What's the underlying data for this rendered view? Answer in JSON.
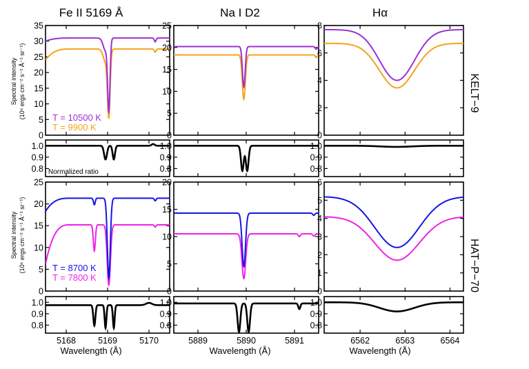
{
  "chart_data": {
    "type": "line",
    "column_titles": [
      "Fe II 5169 Å",
      "Na I D2",
      "Hα"
    ],
    "row_labels": [
      "KELT−9",
      "HAT−P−70"
    ],
    "xlabel": "Wavelength (Å)",
    "ylabel_line1": "Spectral intensity",
    "ylabel_line2": "(10⁶ ergs cm⁻² s⁻¹ Å⁻¹ sr⁻¹)",
    "ratio_label": "Normalized ratio",
    "columns": [
      {
        "xlim": [
          5167.5,
          5170.5
        ],
        "xticks": [
          5168,
          5169,
          5170
        ]
      },
      {
        "xlim": [
          5888.5,
          5891.5
        ],
        "xticks": [
          5889,
          5890,
          5891
        ]
      },
      {
        "xlim": [
          6561.2,
          6564.3
        ],
        "xticks": [
          6562,
          6563,
          6564
        ]
      }
    ],
    "rows": [
      {
        "panels": [
          {
            "ylim": [
              0,
              35
            ],
            "yticks": [
              0,
              5,
              10,
              15,
              20,
              25,
              30,
              35
            ]
          },
          {
            "ylim": [
              0,
              25
            ],
            "yticks": [
              0,
              5,
              10,
              15,
              20,
              25
            ]
          },
          {
            "ylim": [
              0,
              8
            ],
            "yticks": [
              0,
              2,
              4,
              6,
              8
            ]
          }
        ],
        "ratio_ylim": [
          0.73,
          1.05
        ],
        "ratio_yticks": [
          0.8,
          0.9,
          1.0
        ],
        "series": [
          {
            "label": "T = 10500 K",
            "color": "#9b2fd6"
          },
          {
            "label": "T = 9900 K",
            "color": "#f5a21b"
          }
        ]
      },
      {
        "panels": [
          {
            "ylim": [
              0,
              25
            ],
            "yticks": [
              0,
              5,
              10,
              15,
              20,
              25
            ]
          },
          {
            "ylim": [
              0,
              20
            ],
            "yticks": [
              0,
              5,
              10,
              15,
              20
            ]
          },
          {
            "ylim": [
              0,
              6
            ],
            "yticks": [
              0,
              1,
              2,
              3,
              4,
              5,
              6
            ]
          }
        ],
        "ratio_ylim": [
          0.73,
          1.05
        ],
        "ratio_yticks": [
          0.8,
          0.9,
          1.0
        ],
        "series": [
          {
            "label": "T = 8700 K",
            "color": "#1414e6"
          },
          {
            "label": "T = 7800 K",
            "color": "#ee22e6"
          }
        ]
      }
    ],
    "spectra": [
      [
        {
          "col": 0,
          "curves": [
            {
              "series": 0,
              "cont": 31.0,
              "edge": [
                0,
                0.2,
                1.0
              ],
              "lines": [
                {
                  "c": 5169.03,
                  "d": 22.0,
                  "w": 0.04
                },
                {
                  "c": 5168.95,
                  "d": 4,
                  "w": 0.08
                },
                {
                  "c": 5170.15,
                  "d": 1.2,
                  "w": 0.03
                }
              ]
            },
            {
              "series": 1,
              "cont": 27.5,
              "edge": [
                0,
                0.2,
                3.5
              ],
              "lines": [
                {
                  "c": 5169.03,
                  "d": 20.5,
                  "w": 0.045
                },
                {
                  "c": 5168.95,
                  "d": 4,
                  "w": 0.08
                },
                {
                  "c": 5170.15,
                  "d": 1.0,
                  "w": 0.03
                }
              ]
            }
          ],
          "ratio": {
            "base": 1.0,
            "lines": [
              {
                "c": 5168.95,
                "d": 0.12,
                "w": 0.05
              },
              {
                "c": 5169.15,
                "d": 0.12,
                "w": 0.04
              }
            ],
            "bumps": [
              {
                "c": 5170.1,
                "a": 0.015,
                "w": 0.05
              }
            ]
          }
        },
        {
          "col": 1,
          "curves": [
            {
              "series": 0,
              "cont": 20.2,
              "edge": [
                0,
                0,
                0
              ],
              "lines": [
                {
                  "c": 5889.95,
                  "d": 9.2,
                  "w": 0.04
                },
                {
                  "c": 5891.45,
                  "d": 0.6,
                  "w": 0.03
                }
              ]
            },
            {
              "series": 1,
              "cont": 18.3,
              "edge": [
                0,
                0,
                0
              ],
              "lines": [
                {
                  "c": 5889.95,
                  "d": 10.1,
                  "w": 0.045
                },
                {
                  "c": 5891.45,
                  "d": 0.6,
                  "w": 0.03
                }
              ]
            }
          ],
          "ratio": {
            "base": 1.0,
            "lines": [
              {
                "c": 5889.92,
                "d": 0.22,
                "w": 0.04
              },
              {
                "c": 5890.02,
                "d": 0.22,
                "w": 0.04
              }
            ],
            "bumps": []
          }
        },
        {
          "col": 2,
          "curves": [
            {
              "series": 0,
              "cont": 7.7,
              "edge": [
                0,
                0,
                0
              ],
              "lines": [
                {
                  "c": 6562.82,
                  "d": 3.7,
                  "w": 0.55
                }
              ]
            },
            {
              "series": 1,
              "cont": 6.7,
              "edge": [
                0,
                0,
                0
              ],
              "lines": [
                {
                  "c": 6562.82,
                  "d": 3.25,
                  "w": 0.55
                }
              ]
            }
          ],
          "ratio": {
            "base": 1.0,
            "lines": [
              {
                "c": 6562.8,
                "d": 0.01,
                "w": 0.5
              }
            ],
            "bumps": []
          }
        }
      ],
      [
        {
          "col": 0,
          "curves": [
            {
              "series": 0,
              "cont": 21.3,
              "edge": [
                0,
                0.2,
                3.0
              ],
              "lines": [
                {
                  "c": 5169.03,
                  "d": 18.3,
                  "w": 0.05
                },
                {
                  "c": 5168.68,
                  "d": 1.5,
                  "w": 0.03
                },
                {
                  "c": 5170.15,
                  "d": 0.6,
                  "w": 0.03
                }
              ]
            },
            {
              "series": 1,
              "cont": 15.2,
              "edge": [
                0,
                0.2,
                9.0
              ],
              "lines": [
                {
                  "c": 5169.03,
                  "d": 13.8,
                  "w": 0.055
                },
                {
                  "c": 5168.68,
                  "d": 6.0,
                  "w": 0.035
                },
                {
                  "c": 5170.15,
                  "d": 0.5,
                  "w": 0.03
                }
              ]
            }
          ],
          "ratio": {
            "base": 0.975,
            "lines": [
              {
                "c": 5168.68,
                "d": 0.18,
                "w": 0.035
              },
              {
                "c": 5168.95,
                "d": 0.2,
                "w": 0.03
              },
              {
                "c": 5169.15,
                "d": 0.2,
                "w": 0.03
              }
            ],
            "bumps": [
              {
                "c": 5170.0,
                "a": 0.02,
                "w": 0.1
              }
            ]
          }
        },
        {
          "col": 1,
          "curves": [
            {
              "series": 0,
              "cont": 14.3,
              "edge": [
                0,
                0,
                0
              ],
              "lines": [
                {
                  "c": 5889.95,
                  "d": 9.8,
                  "w": 0.05
                },
                {
                  "c": 5891.4,
                  "d": 0.4,
                  "w": 0.03
                }
              ]
            },
            {
              "series": 1,
              "cont": 10.5,
              "edge": [
                0,
                0,
                0
              ],
              "lines": [
                {
                  "c": 5889.95,
                  "d": 8.2,
                  "w": 0.055
                },
                {
                  "c": 5891.1,
                  "d": 0.5,
                  "w": 0.03
                },
                {
                  "c": 5891.4,
                  "d": 0.4,
                  "w": 0.03
                }
              ]
            }
          ],
          "ratio": {
            "base": 0.99,
            "lines": [
              {
                "c": 5889.85,
                "d": 0.25,
                "w": 0.04
              },
              {
                "c": 5890.05,
                "d": 0.25,
                "w": 0.04
              },
              {
                "c": 5891.1,
                "d": 0.05,
                "w": 0.03
              }
            ],
            "bumps": []
          }
        },
        {
          "col": 2,
          "curves": [
            {
              "series": 0,
              "cont": 5.2,
              "edge": [
                0,
                0,
                0
              ],
              "lines": [
                {
                  "c": 6562.82,
                  "d": 2.8,
                  "w": 0.7
                }
              ]
            },
            {
              "series": 1,
              "cont": 4.1,
              "edge": [
                0,
                0,
                0
              ],
              "lines": [
                {
                  "c": 6562.82,
                  "d": 2.4,
                  "w": 0.7
                }
              ]
            }
          ],
          "ratio": {
            "base": 1.0,
            "lines": [
              {
                "c": 6562.82,
                "d": 0.08,
                "w": 0.55
              }
            ],
            "bumps": []
          }
        }
      ]
    ]
  }
}
